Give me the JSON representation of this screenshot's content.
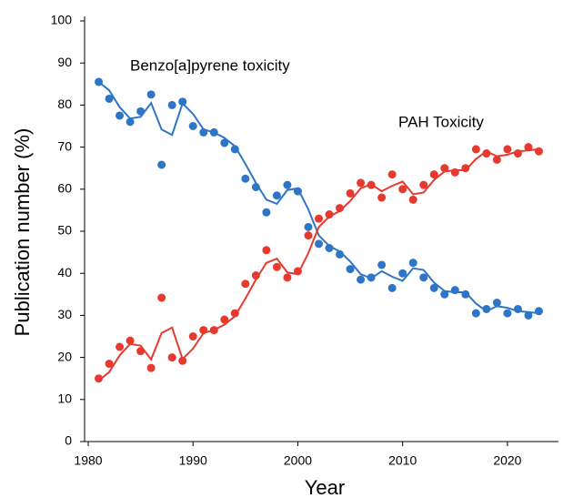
{
  "chart_data": {
    "type": "scatter",
    "xlabel": "Year",
    "ylabel": "Publication  number (%)",
    "x": [
      1981,
      1982,
      1983,
      1984,
      1985,
      1986,
      1987,
      1988,
      1989,
      1990,
      1991,
      1992,
      1993,
      1994,
      1995,
      1996,
      1997,
      1998,
      1999,
      2000,
      2001,
      2002,
      2003,
      2004,
      2005,
      2006,
      2007,
      2008,
      2009,
      2010,
      2011,
      2012,
      2013,
      2014,
      2015,
      2016,
      2017,
      2018,
      2019,
      2020,
      2021,
      2022,
      2023
    ],
    "series": [
      {
        "name": "Benzo[a]pyrene toxicity",
        "color": "#2e75c6",
        "values": [
          85.5,
          81.5,
          77.5,
          76,
          78.5,
          82.5,
          65.8,
          80,
          80.8,
          75,
          73.5,
          73.5,
          71,
          69.5,
          62.5,
          60.5,
          54.5,
          58.5,
          61,
          59.5,
          51,
          47,
          46,
          44.5,
          41,
          38.5,
          39,
          42,
          36.5,
          40,
          42.5,
          39,
          36.5,
          35,
          36,
          35,
          30.5,
          31.5,
          33,
          30.5,
          31.5,
          30,
          31
        ],
        "trend": [
          85.5,
          83.5,
          79.5,
          76.8,
          77.2,
          80.5,
          74.2,
          72.9,
          80.4,
          77.9,
          74.2,
          73.5,
          72.2,
          70.2,
          66,
          61.5,
          57.5,
          56.5,
          59.8,
          60.2,
          55.2,
          49,
          46.5,
          45.2,
          42.8,
          39.8,
          38.8,
          40.5,
          39.2,
          38.2,
          41.2,
          40.8,
          37.8,
          35.8,
          35.5,
          35.5,
          32.8,
          31,
          32.2,
          31.8,
          31,
          30.8,
          30.5
        ]
      },
      {
        "name": "PAH Toxicity",
        "color": "#e8392e",
        "values": [
          15,
          18.5,
          22.5,
          24,
          21.5,
          17.5,
          34.2,
          20,
          19.2,
          25,
          26.5,
          26.5,
          29,
          30.5,
          37.5,
          39.5,
          45.5,
          41.5,
          39,
          40.5,
          49,
          53,
          54,
          55.5,
          59,
          61.5,
          61,
          58,
          63.5,
          60,
          57.5,
          61,
          63.5,
          65,
          64,
          65,
          69.5,
          68.5,
          67,
          69.5,
          68.5,
          70,
          69
        ],
        "trend": [
          14.5,
          16.5,
          20.5,
          23.2,
          22.8,
          19.5,
          25.8,
          27.1,
          19.6,
          22.1,
          25.8,
          26.5,
          27.8,
          29.8,
          34,
          38.5,
          42.5,
          43.5,
          40.2,
          39.8,
          44.8,
          51,
          53.5,
          54.8,
          57.2,
          60.2,
          61.2,
          59.5,
          60.8,
          61.8,
          58.8,
          59.2,
          62.2,
          64.2,
          64.5,
          64.5,
          67.2,
          69,
          67.8,
          68.2,
          69,
          69.2,
          69.5
        ]
      }
    ],
    "xlim": [
      1980,
      2024
    ],
    "xticks": [
      1980,
      1990,
      2000,
      2010,
      2020
    ],
    "ylim": [
      0,
      100
    ],
    "yticks": [
      0,
      10,
      20,
      30,
      40,
      50,
      60,
      70,
      80,
      90,
      100
    ]
  }
}
